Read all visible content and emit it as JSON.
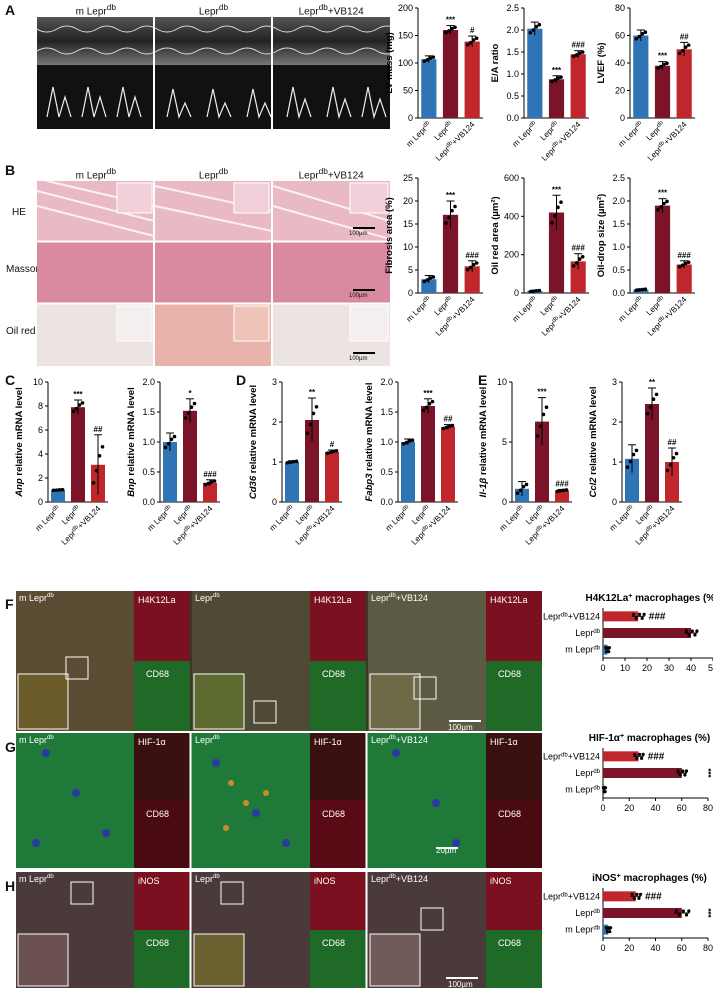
{
  "colors": {
    "blue": "#2f75b5",
    "darkred": "#7b1428",
    "red": "#c0272d",
    "echo_bg": "#1a1a1a"
  },
  "panels": {
    "A": "A",
    "B": "B",
    "C": "C",
    "D": "D",
    "E": "E",
    "F": "F",
    "G": "G",
    "H": "H"
  },
  "groups": {
    "g1": {
      "base": "m Lepr",
      "sup": "db"
    },
    "g2": {
      "base": "Lepr",
      "sup": "db"
    },
    "g3": {
      "base": "Lepr",
      "sup": "db",
      "suffix": "+VB124"
    }
  },
  "histo": {
    "rows": [
      "HE",
      "Masson",
      "Oil red"
    ],
    "scale": "100µm",
    "col_titles": [
      "m Lepr",
      "Lepr",
      "Lepr",
      "+VB124"
    ]
  },
  "fluor": {
    "F": {
      "marker": "H4K12La",
      "cd": "CD68",
      "scale": "100µm"
    },
    "G": {
      "marker": "HIF-1α",
      "cd": "CD68",
      "scale": "20µm"
    },
    "H": {
      "marker": "iNOS",
      "cd": "CD68",
      "scale": "100µm"
    }
  },
  "chart_data": [
    {
      "id": "lv_mass",
      "type": "bar",
      "ylabel": "LV mass (mg)",
      "ylim": [
        0,
        200
      ],
      "yticks": [
        0,
        50,
        100,
        150,
        200
      ],
      "values": [
        107,
        160,
        139
      ],
      "errors": [
        6,
        8,
        10
      ],
      "sig": [
        "",
        "***",
        "#"
      ]
    },
    {
      "id": "ea_ratio",
      "type": "bar",
      "ylabel": "E/A ratio",
      "ylim": [
        0,
        2.5
      ],
      "yticks": [
        0.0,
        0.5,
        1.0,
        1.5,
        2.0,
        2.5
      ],
      "tick_fmt": 1,
      "values": [
        2.03,
        0.88,
        1.45
      ],
      "errors": [
        0.15,
        0.08,
        0.08
      ],
      "sig": [
        "",
        "***",
        "###"
      ]
    },
    {
      "id": "lvef",
      "type": "bar",
      "ylabel": "LVEF (%)",
      "ylim": [
        0,
        80
      ],
      "yticks": [
        0,
        20,
        40,
        60,
        80
      ],
      "values": [
        60,
        38,
        50
      ],
      "errors": [
        4,
        3,
        5
      ],
      "sig": [
        "",
        "***",
        "##"
      ]
    },
    {
      "id": "fibrosis",
      "type": "bar",
      "ylabel": "Fibrosis area (%)",
      "ylim": [
        0,
        25
      ],
      "yticks": [
        0,
        5,
        10,
        15,
        20,
        25
      ],
      "values": [
        3,
        17,
        5.8
      ],
      "errors": [
        0.8,
        3,
        1.2
      ],
      "sig": [
        "",
        "***",
        "###"
      ]
    },
    {
      "id": "oilred",
      "type": "bar",
      "ylabel": "Oil red area (µm²)",
      "ylim": [
        0,
        600
      ],
      "yticks": [
        0,
        200,
        400,
        600
      ],
      "values": [
        10,
        420,
        165
      ],
      "errors": [
        5,
        90,
        40
      ],
      "sig": [
        "",
        "***",
        "###"
      ]
    },
    {
      "id": "oildrop",
      "type": "bar",
      "ylabel": "Oil-drop size (µm²)",
      "ylim": [
        0,
        2.5
      ],
      "yticks": [
        0.0,
        0.5,
        1.0,
        1.5,
        2.0,
        2.5
      ],
      "tick_fmt": 1,
      "values": [
        0.07,
        1.9,
        0.62
      ],
      "errors": [
        0.02,
        0.15,
        0.08
      ],
      "sig": [
        "",
        "***",
        "###"
      ]
    },
    {
      "id": "anp",
      "type": "bar",
      "ylabel": "Anp relative mRNA level",
      "ylabel_italic_word": "Anp",
      "ylim": [
        0,
        10
      ],
      "yticks": [
        0,
        2,
        4,
        6,
        8,
        10
      ],
      "values": [
        1,
        7.9,
        3.1
      ],
      "errors": [
        0.05,
        0.6,
        2.5
      ],
      "sig": [
        "",
        "***",
        "##"
      ]
    },
    {
      "id": "bnp",
      "type": "bar",
      "ylabel": "Bnp relative mRNA level",
      "ylabel_italic_word": "Bnp",
      "ylim": [
        0,
        2.0
      ],
      "yticks": [
        0.0,
        0.5,
        1.0,
        1.5,
        2.0
      ],
      "tick_fmt": 1,
      "values": [
        1.0,
        1.52,
        0.32
      ],
      "errors": [
        0.15,
        0.2,
        0.05
      ],
      "sig": [
        "",
        "*",
        "###"
      ]
    },
    {
      "id": "cd36",
      "type": "bar",
      "ylabel": "Cd36 relative mRNA level",
      "ylabel_italic_word": "Cd36",
      "ylim": [
        0,
        3
      ],
      "yticks": [
        0,
        1,
        2,
        3
      ],
      "values": [
        1.0,
        2.05,
        1.25
      ],
      "errors": [
        0.03,
        0.55,
        0.05
      ],
      "sig": [
        "",
        "**",
        "#"
      ]
    },
    {
      "id": "fabp3",
      "type": "bar",
      "ylabel": "Fabp3 relative mRNA level",
      "ylabel_italic_word": "Fabp3",
      "ylim": [
        0,
        2.0
      ],
      "yticks": [
        0.0,
        0.5,
        1.0,
        1.5,
        2.0
      ],
      "tick_fmt": 1,
      "values": [
        1.0,
        1.6,
        1.25
      ],
      "errors": [
        0.05,
        0.12,
        0.04
      ],
      "sig": [
        "",
        "***",
        "##"
      ]
    },
    {
      "id": "il1b",
      "type": "bar",
      "ylabel": "Il-1β relative mRNA level",
      "ylabel_italic_word": "Il-1β",
      "ylim": [
        0,
        10
      ],
      "yticks": [
        0,
        5,
        10
      ],
      "values": [
        1.1,
        6.7,
        0.95
      ],
      "errors": [
        0.6,
        2.0,
        0.1
      ],
      "sig": [
        "",
        "***",
        "###"
      ]
    },
    {
      "id": "ccl2",
      "type": "bar",
      "ylabel": "Ccl2 relative mRNA level",
      "ylabel_italic_word": "Ccl2",
      "ylim": [
        0,
        3
      ],
      "yticks": [
        0,
        1,
        2,
        3
      ],
      "values": [
        1.08,
        2.45,
        1.0
      ],
      "errors": [
        0.35,
        0.4,
        0.35
      ],
      "sig": [
        "",
        "**",
        "##"
      ]
    },
    {
      "id": "h4k12la",
      "type": "hbar",
      "title": "H4K12La",
      "title_suffix": " macrophages (%)",
      "xlim": [
        0,
        50
      ],
      "xticks": [
        0,
        10,
        20,
        30,
        40,
        50
      ],
      "values": [
        2,
        40,
        16
      ],
      "errors": [
        1,
        3,
        3
      ],
      "sig": [
        "",
        "***",
        "###"
      ]
    },
    {
      "id": "hif1a",
      "type": "hbar",
      "title": "HIF-1α",
      "title_suffix": " macrophages (%)",
      "xlim": [
        0,
        80
      ],
      "xticks": [
        0,
        20,
        40,
        60,
        80
      ],
      "values": [
        1,
        60,
        27
      ],
      "errors": [
        1,
        4,
        4
      ],
      "sig": [
        "",
        "***",
        "###"
      ]
    },
    {
      "id": "inos",
      "type": "hbar",
      "title": "iNOS",
      "title_suffix": " macrophages (%)",
      "xlim": [
        0,
        80
      ],
      "xticks": [
        0,
        20,
        40,
        60,
        80
      ],
      "values": [
        4,
        60,
        25
      ],
      "errors": [
        2,
        6,
        4
      ],
      "sig": [
        "",
        "***",
        "###"
      ]
    }
  ]
}
